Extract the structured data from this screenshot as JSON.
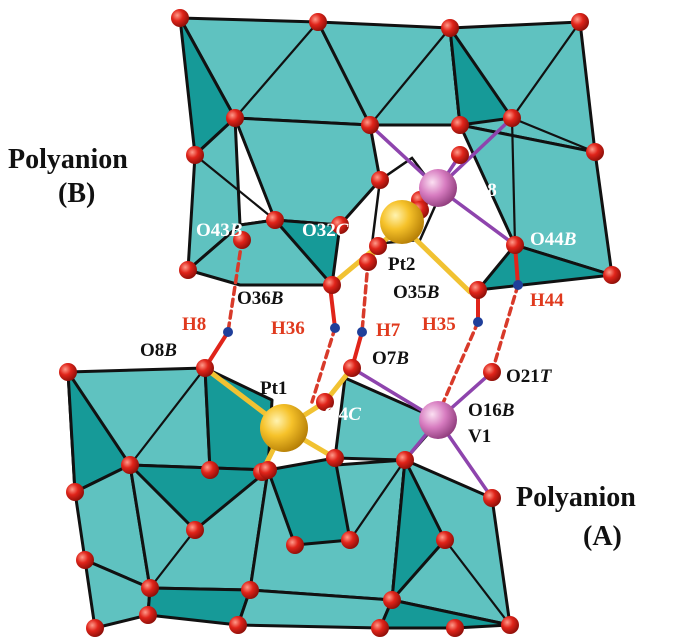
{
  "colors": {
    "polyhedron_face": "#5fc2c0",
    "polyhedron_dark": "#169a98",
    "oxygen": "#e0241a",
    "hydrogen": "#1f3f9a",
    "platinum": "#f0b21c",
    "vanadium": "#d77cc0",
    "pt_bond": "#f1c232",
    "v_bond": "#8e44ad",
    "hbond": "#d83a2a",
    "label_red": "#e03a1e"
  },
  "titles": {
    "polyanion_b_line1": "Polyanion",
    "polyanion_b_line2": "(B)",
    "polyanion_a_line1": "Polyanion",
    "polyanion_a_line2": "(A)"
  },
  "labels": {
    "v18": "V18",
    "o43b": "O43",
    "o43b_suffix": "B",
    "o32c": "O32",
    "o32c_suffix": "C",
    "o44b": "O44",
    "o44b_suffix": "B",
    "pt2": "Pt2",
    "o36b": "O36",
    "o36b_suffix": "B",
    "o35b": "O35",
    "o35b_suffix": "B",
    "h8": "H8",
    "h36": "H36",
    "h7": "H7",
    "h35": "H35",
    "h44": "H44",
    "o8b": "O8",
    "o8b_suffix": "B",
    "o7b": "O7",
    "o7b_suffix": "B",
    "pt1": "Pt1",
    "o4c": "O4",
    "o4c_suffix": "C",
    "o21t": "O21",
    "o21t_suffix": "T",
    "o16b": "O16",
    "o16b_suffix": "B",
    "v1": "V1"
  }
}
